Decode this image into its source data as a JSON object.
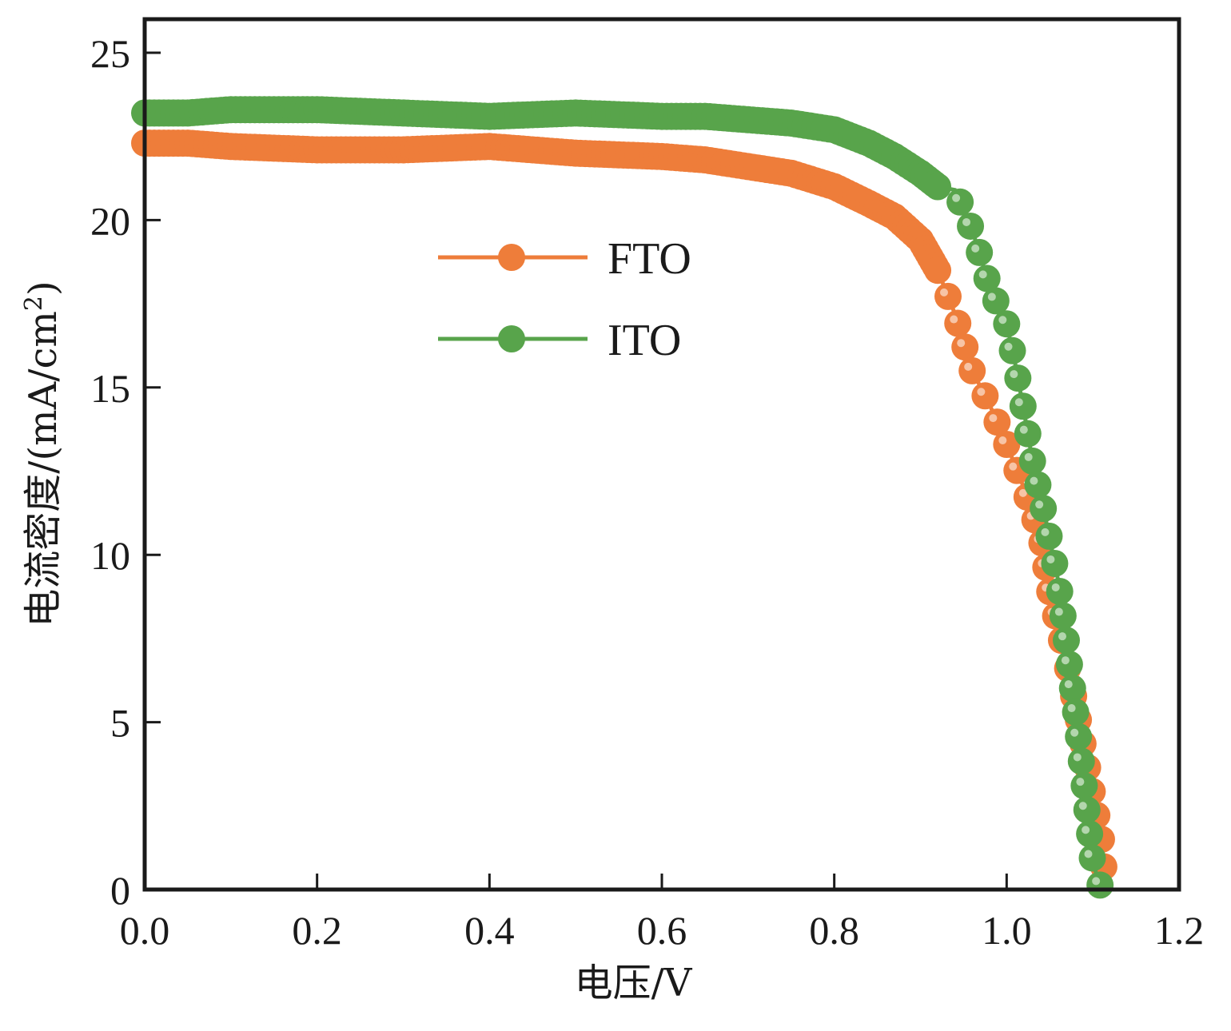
{
  "chart_data": {
    "type": "line",
    "title": "",
    "xlabel": "电压/V",
    "ylabel_main": "电流密度/(mA/cm",
    "ylabel_sup": "2",
    "ylabel_close": ")",
    "xlim": [
      0.0,
      1.2
    ],
    "ylim": [
      0,
      26
    ],
    "x_ticks": [
      0.0,
      0.2,
      0.4,
      0.6,
      0.8,
      1.0,
      1.2
    ],
    "x_tick_labels": [
      "0.0",
      "0.2",
      "0.4",
      "0.6",
      "0.8",
      "1.0",
      "1.2"
    ],
    "y_ticks": [
      0,
      5,
      10,
      15,
      20,
      25
    ],
    "y_tick_labels": [
      "0",
      "5",
      "10",
      "15",
      "20",
      "25"
    ],
    "grid": false,
    "legend_position": "upper-center-left",
    "series": [
      {
        "name": "FTO",
        "color": "#ee7d3a",
        "marker": "circle",
        "x": [
          0.0,
          0.05,
          0.1,
          0.2,
          0.3,
          0.4,
          0.5,
          0.6,
          0.65,
          0.7,
          0.75,
          0.8,
          0.84,
          0.87,
          0.9,
          0.92,
          0.94,
          0.96,
          0.98,
          1.0,
          1.02,
          1.04,
          1.05,
          1.065,
          1.08,
          1.095,
          1.11,
          1.115
        ],
        "y": [
          22.3,
          22.3,
          22.2,
          22.1,
          22.1,
          22.2,
          22.0,
          21.9,
          21.8,
          21.6,
          21.4,
          21.0,
          20.5,
          20.1,
          19.4,
          18.5,
          17.2,
          15.5,
          14.5,
          13.3,
          12.0,
          10.5,
          8.9,
          7.3,
          5.5,
          3.5,
          1.5,
          0.0
        ]
      },
      {
        "name": "ITO",
        "color": "#58a44b",
        "marker": "circle",
        "x": [
          0.0,
          0.05,
          0.1,
          0.2,
          0.3,
          0.4,
          0.5,
          0.6,
          0.65,
          0.7,
          0.75,
          0.8,
          0.84,
          0.87,
          0.9,
          0.92,
          0.94,
          0.95,
          0.96,
          0.97,
          0.98,
          1.0,
          1.01,
          1.02,
          1.03,
          1.045,
          1.06,
          1.07,
          1.08,
          1.09,
          1.1,
          1.11
        ],
        "y": [
          23.2,
          23.2,
          23.3,
          23.3,
          23.2,
          23.1,
          23.2,
          23.1,
          23.1,
          23.0,
          22.9,
          22.7,
          22.3,
          21.9,
          21.4,
          21.0,
          20.9,
          20.3,
          19.7,
          18.9,
          18.0,
          16.9,
          15.7,
          14.3,
          12.8,
          11.1,
          9.2,
          7.3,
          5.3,
          3.1,
          0.8,
          0.0
        ]
      }
    ]
  }
}
